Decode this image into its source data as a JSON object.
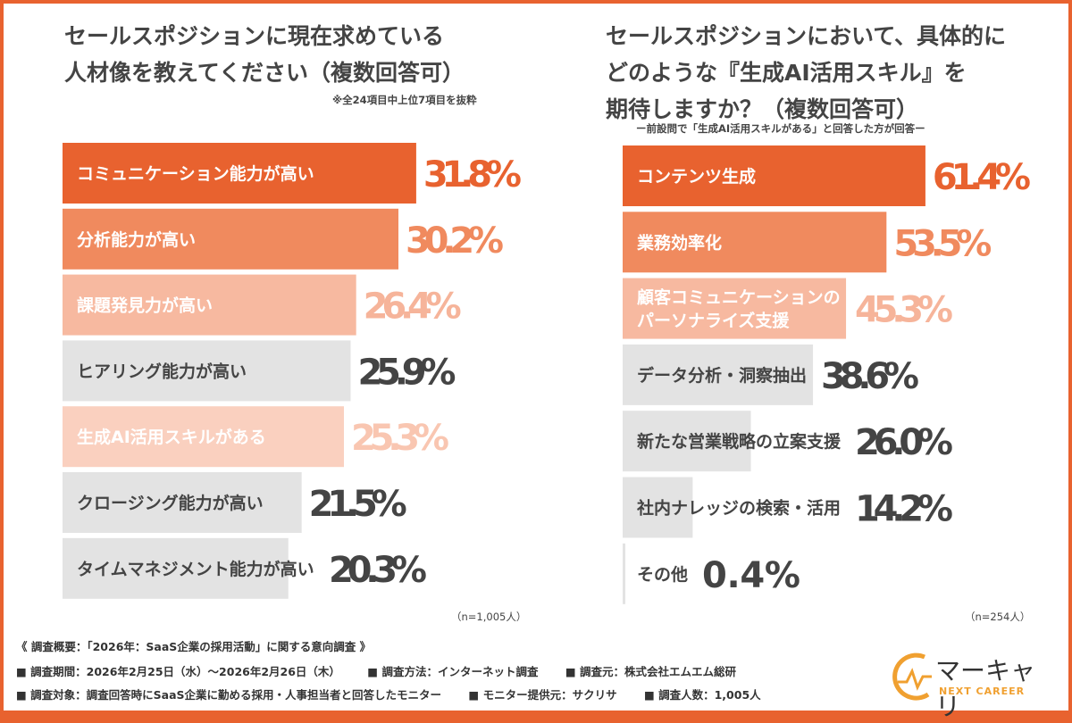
{
  "chart_data": [
    {
      "type": "bar",
      "orientation": "horizontal",
      "title": "セールスポジションに現在求めている\n人材像を教えてください（複数回答可）",
      "subtitle": "※全24項目中上位7項目を抜粋",
      "categories": [
        "コミュニケーション能力が高い",
        "分析能力が高い",
        "課題発見力が高い",
        "ヒアリング能力が高い",
        "生成AI活用スキルがある",
        "クロージング能力が高い",
        "タイムマネジメント能力が高い"
      ],
      "values": [
        31.8,
        30.2,
        26.4,
        25.9,
        25.3,
        21.5,
        20.3
      ],
      "value_labels": [
        "31.8%",
        "30.2%",
        "26.4%",
        "25.9%",
        "25.3%",
        "21.5%",
        "20.3%"
      ],
      "bar_colors": [
        "#e8622f",
        "#f08a5e",
        "#f7b9a0",
        "#e3e3e3",
        "#fad0bf",
        "#e3e3e3",
        "#e3e3e3"
      ],
      "label_colors": [
        "#ffffff",
        "#ffffff",
        "#ffffff",
        "#444444",
        "#ffffff",
        "#444444",
        "#444444"
      ],
      "value_colors": [
        "#e8622f",
        "#f08a5e",
        "#f6b49a",
        "#444444",
        "#f9c6b1",
        "#444444",
        "#444444"
      ],
      "sample": "（n=1,005人）"
    },
    {
      "type": "bar",
      "orientation": "horizontal",
      "title": "セールスポジションにおいて、具体的に\nどのような『生成AI活用スキル』を\n期待しますか？（複数回答可）",
      "subtitle": "ー前設問で「生成AI活用スキルがある」と回答した方が回答ー",
      "categories": [
        "コンテンツ生成",
        "業務効率化",
        "顧客コミュニケーションの\nパーソナライズ支援",
        "データ分析・洞察抽出",
        "新たな営業戦略の立案支援",
        "社内ナレッジの検索・活用",
        "その他"
      ],
      "values": [
        61.4,
        53.5,
        45.3,
        38.6,
        26.0,
        14.2,
        0.4
      ],
      "value_labels": [
        "61.4%",
        "53.5%",
        "45.3%",
        "38.6%",
        "26.0%",
        "14.2%",
        "0.4%"
      ],
      "bar_colors": [
        "#e8622f",
        "#f08a5e",
        "#f7b9a0",
        "#e3e3e3",
        "#e3e3e3",
        "#e3e3e3",
        "#e3e3e3"
      ],
      "label_colors": [
        "#ffffff",
        "#ffffff",
        "#ffffff",
        "#444444",
        "#444444",
        "#444444",
        "#444444"
      ],
      "value_colors": [
        "#e8622f",
        "#f08a5e",
        "#f6b49a",
        "#444444",
        "#444444",
        "#444444",
        "#444444"
      ],
      "sample": "（n=254人）"
    }
  ],
  "footer": {
    "heading": "《 調査概要：「2026年：SaaS企業の採用活動」に関する意向調査 》",
    "line1": [
      "■ 調査期間：2026年2月25日（水）～2026年2月26日（木）",
      "■ 調査方法：インターネット調査",
      "■ 調査元：株式会社エムエム総研"
    ],
    "line2": [
      "■ 調査対象：調査回答時にSaaS企業に勤める採用・人事担当者と回答したモニター",
      "■ モニター提供元：サクリサ",
      "■ 調査人数：1,005人"
    ]
  },
  "logo": {
    "name": "マーキャリ",
    "tagline": "NEXT CAREER",
    "color": "#f0a030"
  }
}
